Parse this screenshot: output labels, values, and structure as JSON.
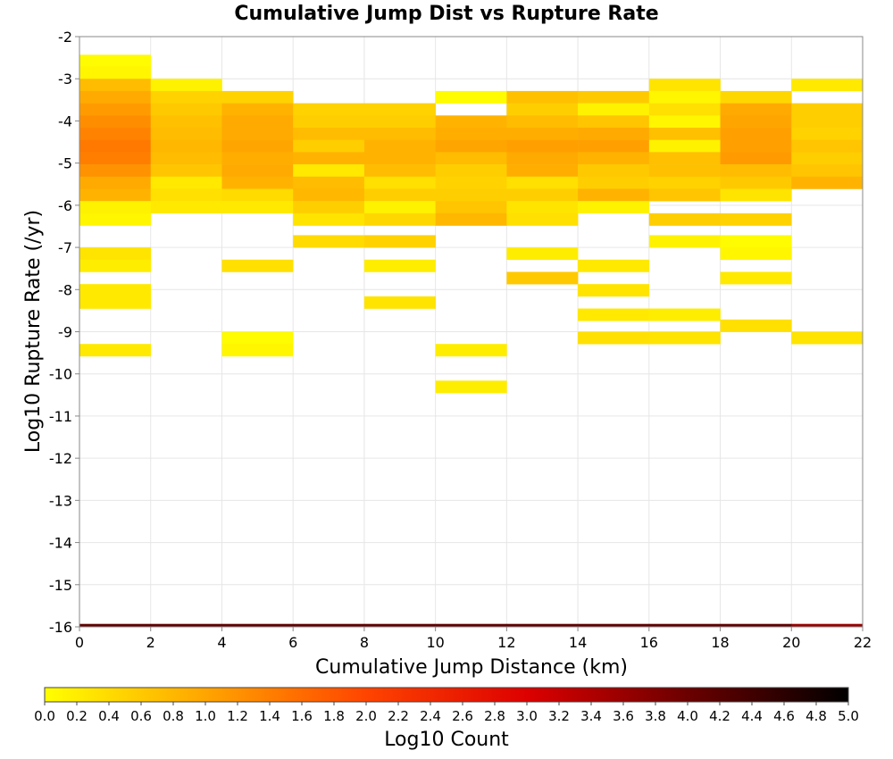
{
  "chart_data": {
    "type": "heatmap",
    "title": "Cumulative Jump Dist vs Rupture Rate",
    "xlabel": "Cumulative Jump Distance (km)",
    "ylabel": "Log10 Rupture Rate (/yr)",
    "xlim": [
      0,
      22
    ],
    "ylim": [
      -16,
      -2
    ],
    "x_ticks": [
      "0",
      "2",
      "4",
      "6",
      "8",
      "10",
      "12",
      "14",
      "16",
      "18",
      "20",
      "22"
    ],
    "y_ticks": [
      "-2",
      "-3",
      "-4",
      "-5",
      "-6",
      "-7",
      "-8",
      "-9",
      "-10",
      "-11",
      "-12",
      "-13",
      "-14",
      "-15",
      "-16"
    ],
    "grid": true,
    "colorbar": {
      "label": "Log10 Count",
      "range": [
        0,
        5
      ],
      "colormap": [
        "#ffff00",
        "#ffa500",
        "#ff4400",
        "#dd0000",
        "#6b0000",
        "#000000"
      ],
      "ticks": [
        "0.0",
        "0.2",
        "0.4",
        "0.6",
        "0.8",
        "1.0",
        "1.2",
        "1.4",
        "1.6",
        "1.8",
        "2.0",
        "2.2",
        "2.4",
        "2.6",
        "2.8",
        "3.0",
        "3.2",
        "3.4",
        "3.6",
        "3.8",
        "4.0",
        "4.2",
        "4.4",
        "4.6",
        "4.8",
        "5.0"
      ]
    },
    "x_bin_width": 2,
    "y_bin_height": 0.29,
    "columns": [
      {
        "x0": 0,
        "cells": [
          [
            -2.72,
            0.05
          ],
          [
            -3.0,
            0.1
          ],
          [
            -3.29,
            0.75
          ],
          [
            -3.58,
            0.95
          ],
          [
            -3.87,
            1.1
          ],
          [
            -4.16,
            1.25
          ],
          [
            -4.45,
            1.35
          ],
          [
            -4.74,
            1.45
          ],
          [
            -5.03,
            1.4
          ],
          [
            -5.32,
            1.2
          ],
          [
            -5.61,
            0.95
          ],
          [
            -5.9,
            0.85
          ],
          [
            -6.19,
            0.15
          ],
          [
            -6.48,
            0.1
          ],
          [
            -7.29,
            0.3
          ],
          [
            -7.58,
            0.2
          ],
          [
            -8.16,
            0.25
          ],
          [
            -8.45,
            0.25
          ],
          [
            -9.58,
            0.25
          ],
          [
            -16.0,
            4.1
          ]
        ]
      },
      {
        "x0": 2,
        "cells": [
          [
            -3.29,
            0.15
          ],
          [
            -3.58,
            0.5
          ],
          [
            -3.87,
            0.6
          ],
          [
            -4.16,
            0.7
          ],
          [
            -4.45,
            0.75
          ],
          [
            -4.74,
            0.8
          ],
          [
            -5.03,
            0.75
          ],
          [
            -5.32,
            0.65
          ],
          [
            -5.61,
            0.25
          ],
          [
            -5.9,
            0.35
          ],
          [
            -6.19,
            0.25
          ],
          [
            -16.0,
            4.1
          ]
        ]
      },
      {
        "x0": 4,
        "cells": [
          [
            -3.58,
            0.5
          ],
          [
            -3.87,
            0.85
          ],
          [
            -4.16,
            0.95
          ],
          [
            -4.45,
            0.95
          ],
          [
            -4.74,
            1.0
          ],
          [
            -5.03,
            0.9
          ],
          [
            -5.32,
            0.95
          ],
          [
            -5.61,
            0.85
          ],
          [
            -5.9,
            0.4
          ],
          [
            -6.19,
            0.25
          ],
          [
            -7.58,
            0.35
          ],
          [
            -9.29,
            0.05
          ],
          [
            -9.58,
            0.1
          ],
          [
            -16.0,
            4.1
          ]
        ]
      },
      {
        "x0": 6,
        "cells": [
          [
            -3.87,
            0.5
          ],
          [
            -4.16,
            0.55
          ],
          [
            -4.45,
            0.75
          ],
          [
            -4.74,
            0.55
          ],
          [
            -5.03,
            0.85
          ],
          [
            -5.32,
            0.25
          ],
          [
            -5.61,
            0.75
          ],
          [
            -5.9,
            0.8
          ],
          [
            -6.19,
            0.55
          ],
          [
            -6.48,
            0.3
          ],
          [
            -7.0,
            0.4
          ],
          [
            -16.0,
            4.1
          ]
        ]
      },
      {
        "x0": 8,
        "cells": [
          [
            -3.87,
            0.5
          ],
          [
            -4.16,
            0.55
          ],
          [
            -4.45,
            0.75
          ],
          [
            -4.74,
            0.85
          ],
          [
            -5.03,
            0.85
          ],
          [
            -5.32,
            0.75
          ],
          [
            -5.61,
            0.35
          ],
          [
            -5.9,
            0.55
          ],
          [
            -6.19,
            0.15
          ],
          [
            -6.48,
            0.45
          ],
          [
            -7.0,
            0.5
          ],
          [
            -7.58,
            0.2
          ],
          [
            -8.45,
            0.3
          ],
          [
            -16.0,
            4.1
          ]
        ]
      },
      {
        "x0": 10,
        "cells": [
          [
            -3.58,
            0.05
          ],
          [
            -4.16,
            0.85
          ],
          [
            -4.45,
            0.9
          ],
          [
            -4.74,
            1.0
          ],
          [
            -5.03,
            0.75
          ],
          [
            -5.32,
            0.55
          ],
          [
            -5.61,
            0.5
          ],
          [
            -5.9,
            0.55
          ],
          [
            -6.19,
            0.65
          ],
          [
            -6.48,
            0.8
          ],
          [
            -9.58,
            0.2
          ],
          [
            -10.45,
            0.2
          ],
          [
            -16.0,
            4.1
          ]
        ]
      },
      {
        "x0": 12,
        "cells": [
          [
            -3.58,
            0.7
          ],
          [
            -3.87,
            0.55
          ],
          [
            -4.16,
            0.75
          ],
          [
            -4.45,
            0.9
          ],
          [
            -4.74,
            1.05
          ],
          [
            -5.03,
            0.95
          ],
          [
            -5.32,
            0.9
          ],
          [
            -5.61,
            0.35
          ],
          [
            -5.9,
            0.55
          ],
          [
            -6.19,
            0.3
          ],
          [
            -6.48,
            0.35
          ],
          [
            -7.29,
            0.2
          ],
          [
            -7.87,
            0.6
          ],
          [
            -16.0,
            4.1
          ]
        ]
      },
      {
        "x0": 14,
        "cells": [
          [
            -3.58,
            0.6
          ],
          [
            -3.87,
            0.15
          ],
          [
            -4.16,
            0.65
          ],
          [
            -4.45,
            0.95
          ],
          [
            -4.74,
            1.05
          ],
          [
            -5.03,
            0.85
          ],
          [
            -5.32,
            0.6
          ],
          [
            -5.61,
            0.55
          ],
          [
            -5.9,
            0.85
          ],
          [
            -6.19,
            0.15
          ],
          [
            -7.58,
            0.25
          ],
          [
            -8.16,
            0.3
          ],
          [
            -8.74,
            0.25
          ],
          [
            -9.29,
            0.35
          ],
          [
            -16.0,
            4.1
          ]
        ]
      },
      {
        "x0": 16,
        "cells": [
          [
            -3.29,
            0.3
          ],
          [
            -3.58,
            0.1
          ],
          [
            -3.87,
            0.35
          ],
          [
            -4.16,
            0.1
          ],
          [
            -4.45,
            0.7
          ],
          [
            -4.74,
            0.15
          ],
          [
            -5.03,
            0.7
          ],
          [
            -5.32,
            0.7
          ],
          [
            -5.61,
            0.5
          ],
          [
            -5.9,
            0.65
          ],
          [
            -6.48,
            0.55
          ],
          [
            -7.0,
            0.15
          ],
          [
            -8.74,
            0.2
          ],
          [
            -9.29,
            0.3
          ],
          [
            -16.0,
            4.1
          ]
        ]
      },
      {
        "x0": 18,
        "cells": [
          [
            -3.58,
            0.45
          ],
          [
            -3.87,
            0.95
          ],
          [
            -4.16,
            1.0
          ],
          [
            -4.45,
            1.05
          ],
          [
            -4.74,
            1.05
          ],
          [
            -5.03,
            1.1
          ],
          [
            -5.32,
            0.75
          ],
          [
            -5.61,
            0.6
          ],
          [
            -5.9,
            0.3
          ],
          [
            -6.48,
            0.5
          ],
          [
            -7.0,
            0.05
          ],
          [
            -7.29,
            0.1
          ],
          [
            -7.87,
            0.25
          ],
          [
            -9.0,
            0.35
          ],
          [
            -16.0,
            4.1
          ]
        ]
      },
      {
        "x0": 20,
        "cells": [
          [
            -3.29,
            0.25
          ],
          [
            -3.87,
            0.55
          ],
          [
            -4.16,
            0.55
          ],
          [
            -4.45,
            0.5
          ],
          [
            -4.74,
            0.65
          ],
          [
            -5.03,
            0.55
          ],
          [
            -5.32,
            0.65
          ],
          [
            -5.61,
            0.85
          ],
          [
            -9.29,
            0.3
          ],
          [
            -16.0,
            3.6
          ]
        ]
      }
    ]
  }
}
